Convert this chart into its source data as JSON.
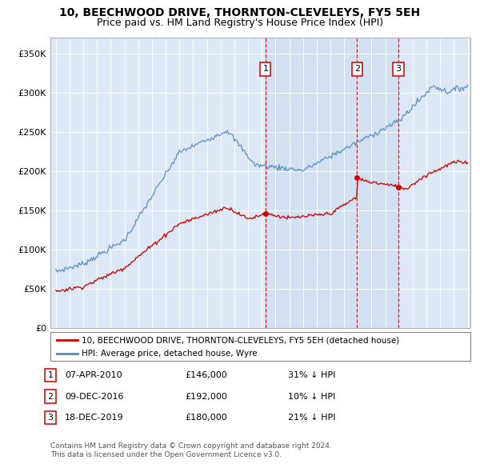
{
  "title": "10, BEECHWOOD DRIVE, THORNTON-CLEVELEYS, FY5 5EH",
  "subtitle": "Price paid vs. HM Land Registry's House Price Index (HPI)",
  "red_line_label": "10, BEECHWOOD DRIVE, THORNTON-CLEVELEYS, FY5 5EH (detached house)",
  "blue_line_label": "HPI: Average price, detached house, Wyre",
  "footer_line1": "Contains HM Land Registry data © Crown copyright and database right 2024.",
  "footer_line2": "This data is licensed under the Open Government Licence v3.0.",
  "sales": [
    {
      "num": 1,
      "date": "07-APR-2010",
      "price": 146000,
      "x": 2010.27,
      "hpi_pct": "31% ↓ HPI"
    },
    {
      "num": 2,
      "date": "09-DEC-2016",
      "price": 192000,
      "x": 2016.94,
      "hpi_pct": "10% ↓ HPI"
    },
    {
      "num": 3,
      "date": "18-DEC-2019",
      "price": 180000,
      "x": 2019.96,
      "hpi_pct": "21% ↓ HPI"
    }
  ],
  "ylim": [
    0,
    370000
  ],
  "xlim": [
    1994.6,
    2025.2
  ],
  "yticks": [
    0,
    50000,
    100000,
    150000,
    200000,
    250000,
    300000,
    350000
  ],
  "ytick_labels": [
    "£0",
    "£50K",
    "£100K",
    "£150K",
    "£200K",
    "£250K",
    "£300K",
    "£350K"
  ],
  "xticks": [
    1995,
    1996,
    1997,
    1998,
    1999,
    2000,
    2001,
    2002,
    2003,
    2004,
    2005,
    2006,
    2007,
    2008,
    2009,
    2010,
    2011,
    2012,
    2013,
    2014,
    2015,
    2016,
    2017,
    2018,
    2019,
    2020,
    2021,
    2022,
    2023,
    2024,
    2025
  ],
  "fig_bg": "#ffffff",
  "plot_bg": "#dce8f5",
  "grid_color": "#ffffff",
  "red_color": "#cc0000",
  "blue_color": "#5588bb",
  "vline_color": "#cc0000",
  "shade_color": "#c8dcf0",
  "title_fontsize": 10,
  "subtitle_fontsize": 9
}
